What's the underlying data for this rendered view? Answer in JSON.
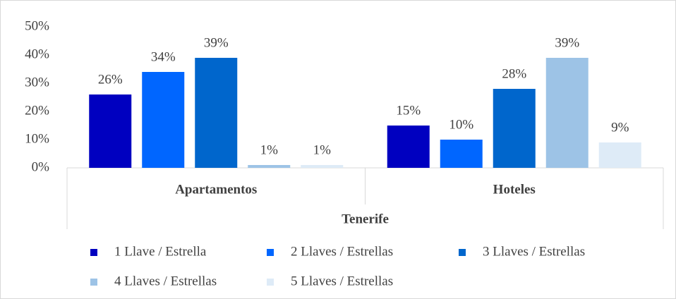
{
  "chart_data": {
    "type": "bar",
    "categories": [
      "Apartamentos",
      "Hoteles"
    ],
    "x_group": "Tenerife",
    "series": [
      {
        "name": "1 Llave / Estrella",
        "color": "#0000c0",
        "values": [
          26,
          15
        ],
        "value_labels": [
          "26%",
          "15%"
        ]
      },
      {
        "name": "2 Llaves / Estrellas",
        "color": "#0066ff",
        "values": [
          34,
          10
        ],
        "value_labels": [
          "34%",
          "10%"
        ]
      },
      {
        "name": "3 Llaves / Estrellas",
        "color": "#0066cc",
        "values": [
          39,
          28
        ],
        "value_labels": [
          "39%",
          "28%"
        ]
      },
      {
        "name": "4 Llaves / Estrellas",
        "color": "#9dc3e6",
        "values": [
          1,
          39
        ],
        "value_labels": [
          "1%",
          "39%"
        ]
      },
      {
        "name": "5 Llaves / Estrellas",
        "color": "#deebf7",
        "values": [
          1,
          9
        ],
        "value_labels": [
          "1%",
          "9%"
        ]
      }
    ],
    "ylim": [
      0,
      50
    ],
    "yticks": [
      {
        "value": 0,
        "label": "0%"
      },
      {
        "value": 10,
        "label": "10%"
      },
      {
        "value": 20,
        "label": "20%"
      },
      {
        "value": 30,
        "label": "30%"
      },
      {
        "value": 40,
        "label": "40%"
      },
      {
        "value": 50,
        "label": "50%"
      }
    ],
    "grid": false,
    "legend": "bottom"
  }
}
